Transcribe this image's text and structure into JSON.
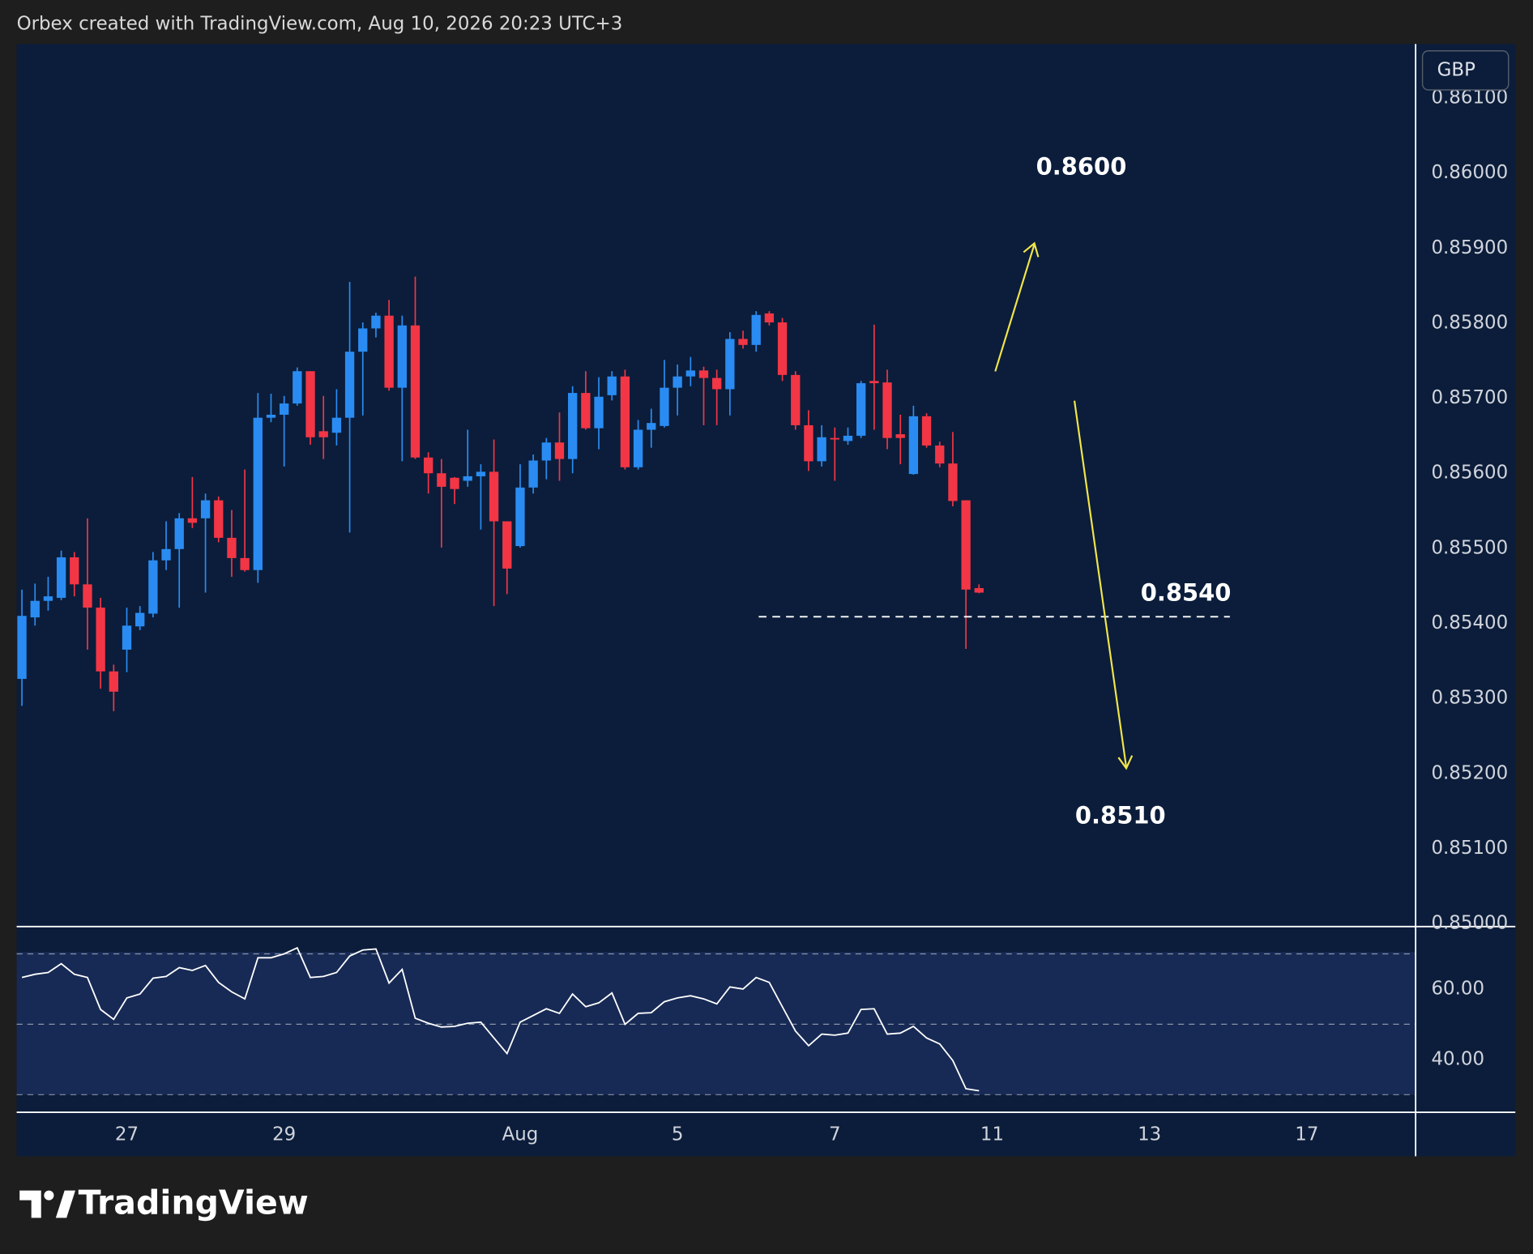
{
  "header": {
    "text": "Orbex created with TradingView.com, Aug 10, 2026 20:23 UTC+3"
  },
  "footer": {
    "logo_text": "TradingView"
  },
  "chart_data": [
    {
      "type": "candlestick",
      "currency": "GBP",
      "up_color": "#2a8cf2",
      "down_color": "#f23645",
      "open": [
        0.85326,
        0.85408,
        0.8543,
        0.85434,
        0.85488,
        0.85452,
        0.85421,
        0.85336,
        0.85365,
        0.85396,
        0.85413,
        0.85484,
        0.85499,
        0.8554,
        0.8554,
        0.85564,
        0.85514,
        0.85487,
        0.85471,
        0.85674,
        0.85678,
        0.85693,
        0.85736,
        0.85656,
        0.85654,
        0.85674,
        0.85762,
        0.85793,
        0.8581,
        0.85714,
        0.85797,
        0.85621,
        0.856,
        0.85594,
        0.8559,
        0.85596,
        0.85602,
        0.85536,
        0.85503,
        0.85581,
        0.85617,
        0.85641,
        0.85619,
        0.85707,
        0.8566,
        0.85704,
        0.85729,
        0.85608,
        0.85658,
        0.85663,
        0.85714,
        0.85729,
        0.85737,
        0.85727,
        0.85712,
        0.85779,
        0.85771,
        0.85813,
        0.85801,
        0.85731,
        0.85664,
        0.85616,
        0.85647,
        0.85643,
        0.8565,
        0.85723,
        0.85721,
        0.85652,
        0.85599,
        0.85676,
        0.85637,
        0.85613,
        0.85564,
        0.85447
      ],
      "high": [
        0.85445,
        0.85453,
        0.85462,
        0.85497,
        0.85495,
        0.8554,
        0.85434,
        0.85345,
        0.85421,
        0.85423,
        0.85495,
        0.85536,
        0.85547,
        0.85595,
        0.85573,
        0.85569,
        0.85551,
        0.85605,
        0.85707,
        0.85706,
        0.85703,
        0.85741,
        0.85736,
        0.85703,
        0.85712,
        0.85855,
        0.85801,
        0.85814,
        0.85831,
        0.8581,
        0.85862,
        0.85628,
        0.85619,
        0.85595,
        0.85658,
        0.85612,
        0.85645,
        0.85536,
        0.85612,
        0.85625,
        0.85647,
        0.85681,
        0.85716,
        0.85736,
        0.85728,
        0.85736,
        0.85738,
        0.85671,
        0.85686,
        0.85751,
        0.85745,
        0.85755,
        0.85742,
        0.85738,
        0.85788,
        0.8579,
        0.85816,
        0.85816,
        0.85807,
        0.85736,
        0.85684,
        0.85664,
        0.85661,
        0.85661,
        0.85723,
        0.85798,
        0.85738,
        0.85678,
        0.8569,
        0.8568,
        0.85642,
        0.85655,
        0.85564,
        0.85452
      ],
      "low": [
        0.8529,
        0.85397,
        0.85417,
        0.85431,
        0.85436,
        0.85365,
        0.85313,
        0.85283,
        0.85335,
        0.85391,
        0.85408,
        0.85471,
        0.85421,
        0.85527,
        0.85441,
        0.85508,
        0.85462,
        0.85469,
        0.85454,
        0.85668,
        0.85609,
        0.8569,
        0.85638,
        0.85619,
        0.85637,
        0.85521,
        0.85677,
        0.85781,
        0.8571,
        0.85616,
        0.85619,
        0.85573,
        0.85501,
        0.85559,
        0.85582,
        0.85525,
        0.85423,
        0.85439,
        0.85501,
        0.85573,
        0.85592,
        0.8559,
        0.856,
        0.85658,
        0.85632,
        0.85697,
        0.85605,
        0.85605,
        0.85634,
        0.85661,
        0.85677,
        0.85716,
        0.85664,
        0.85664,
        0.85677,
        0.85766,
        0.85762,
        0.85797,
        0.85723,
        0.85658,
        0.85603,
        0.85609,
        0.8559,
        0.85638,
        0.85647,
        0.85658,
        0.85632,
        0.85612,
        0.85598,
        0.85634,
        0.85608,
        0.85556,
        0.85366,
        0.8544
      ],
      "close": [
        0.8541,
        0.8543,
        0.85436,
        0.85488,
        0.85452,
        0.85421,
        0.85336,
        0.85309,
        0.85397,
        0.85414,
        0.85484,
        0.85499,
        0.8554,
        0.85534,
        0.85564,
        0.85514,
        0.85487,
        0.85471,
        0.85674,
        0.85678,
        0.85693,
        0.85736,
        0.85648,
        0.85648,
        0.85674,
        0.85762,
        0.85793,
        0.8581,
        0.85714,
        0.85797,
        0.85621,
        0.856,
        0.85582,
        0.85579,
        0.85596,
        0.85602,
        0.85536,
        0.85473,
        0.85581,
        0.85617,
        0.85641,
        0.85619,
        0.85707,
        0.8566,
        0.85702,
        0.85729,
        0.85608,
        0.85658,
        0.85667,
        0.85714,
        0.85729,
        0.85737,
        0.85727,
        0.85712,
        0.85779,
        0.85771,
        0.85811,
        0.85801,
        0.85731,
        0.85664,
        0.85616,
        0.85648,
        0.85645,
        0.8565,
        0.8572,
        0.8572,
        0.85647,
        0.85647,
        0.85676,
        0.85637,
        0.85613,
        0.85563,
        0.85445,
        0.85441
      ],
      "xlim": [
        -0.4,
        106.3
      ],
      "xticks": [
        {
          "value": 8,
          "label": "27"
        },
        {
          "value": 20,
          "label": "29"
        },
        {
          "value": 38,
          "label": "Aug"
        },
        {
          "value": 50,
          "label": "5"
        },
        {
          "value": 62,
          "label": "7"
        },
        {
          "value": 74,
          "label": "11"
        },
        {
          "value": 86,
          "label": "13"
        },
        {
          "value": 98,
          "label": "17"
        }
      ],
      "ylim": [
        0.84996,
        0.86172
      ],
      "yticks": [
        {
          "value": 0.85,
          "label": "0.85000"
        },
        {
          "value": 0.851,
          "label": "0.85100"
        },
        {
          "value": 0.852,
          "label": "0.85200"
        },
        {
          "value": 0.853,
          "label": "0.85300"
        },
        {
          "value": 0.854,
          "label": "0.85400"
        },
        {
          "value": 0.855,
          "label": "0.85500"
        },
        {
          "value": 0.856,
          "label": "0.85600"
        },
        {
          "value": 0.857,
          "label": "0.85700"
        },
        {
          "value": 0.858,
          "label": "0.85800"
        },
        {
          "value": 0.859,
          "label": "0.85900"
        },
        {
          "value": 0.86,
          "label": "0.86000"
        },
        {
          "value": 0.861,
          "label": "0.86100"
        }
      ],
      "annotations": [
        {
          "text": "0.8600"
        },
        {
          "text": "0.8540"
        },
        {
          "text": "0.8510"
        }
      ]
    },
    {
      "type": "line",
      "color": "#ffffff",
      "values": [
        63.3,
        64.2,
        64.7,
        67.2,
        64.2,
        63.3,
        54.2,
        51.4,
        57.5,
        58.6,
        63.1,
        63.6,
        66.1,
        65.3,
        66.7,
        61.9,
        59.2,
        57.2,
        68.9,
        68.9,
        70.0,
        71.7,
        63.3,
        63.6,
        64.7,
        69.4,
        71.1,
        71.4,
        61.7,
        65.6,
        51.7,
        50.3,
        49.2,
        49.4,
        50.3,
        50.6,
        46.1,
        41.7,
        50.6,
        52.5,
        54.4,
        53.1,
        58.6,
        55.0,
        56.1,
        58.9,
        50.0,
        53.1,
        53.3,
        56.4,
        57.5,
        58.1,
        57.2,
        55.8,
        60.6,
        60.0,
        63.3,
        61.9,
        55.0,
        48.1,
        43.9,
        47.2,
        46.9,
        47.5,
        54.2,
        54.4,
        47.2,
        47.5,
        49.4,
        46.1,
        44.4,
        39.7,
        31.7,
        31.1
      ],
      "ylim": [
        25,
        77.2
      ],
      "yticks": [
        {
          "value": 60,
          "label": "60.00"
        },
        {
          "value": 40,
          "label": "40.00"
        }
      ],
      "levels": [
        70,
        50,
        30
      ]
    }
  ]
}
